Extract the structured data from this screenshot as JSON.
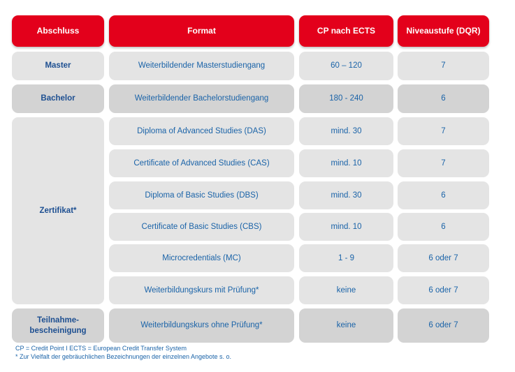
{
  "headers": [
    "Abschluss",
    "Format",
    "CP nach ECTS",
    "Niveaustufe (DQR)"
  ],
  "rows": [
    {
      "format": "Weiterbildender Masterstudiengang",
      "cp": "60 – 120",
      "dqr": "7"
    },
    {
      "format": "Weiterbildender Bachelorstudiengang",
      "cp": "180 - 240",
      "dqr": "6"
    },
    {
      "format": "Diploma of Advanced Studies (DAS)",
      "cp": "mind. 30",
      "dqr": "7"
    },
    {
      "format": "Certificate of Advanced Studies (CAS)",
      "cp": "mind. 10",
      "dqr": "7"
    },
    {
      "format": "Diploma of Basic Studies (DBS)",
      "cp": "mind. 30",
      "dqr": "6"
    },
    {
      "format": "Certificate of Basic Studies (CBS)",
      "cp": "mind. 10",
      "dqr": "6"
    },
    {
      "format": "Microcredentials (MC)",
      "cp": "1 - 9",
      "dqr": "6 oder 7"
    },
    {
      "format": "Weiterbildungskurs mit Prüfung*",
      "cp": "keine",
      "dqr": "6 oder 7"
    },
    {
      "format": "Weiterbildungskurs ohne Prüfung*",
      "cp": "keine",
      "dqr": "6 oder 7"
    }
  ],
  "degrees": {
    "master": "Master",
    "bachelor": "Bachelor",
    "zertifikat": "Zertifikat*",
    "teilnahme_line1": "Teilnahme-",
    "teilnahme_line2": "bescheinigung"
  },
  "footnotes": [
    "CP = Credit Point I ECTS = European Credit Transfer System",
    "* Zur Vielfalt der gebräuchlichen Bezeichnungen der einzelnen Angebote s. o."
  ],
  "colors": {
    "header": "#e3001b",
    "text": "#1a63a8",
    "cell_light": "#e4e4e4",
    "cell_dark": "#d3d3d3"
  }
}
